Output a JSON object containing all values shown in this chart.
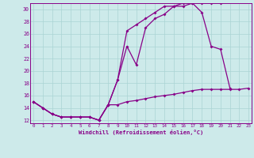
{
  "xlabel": "Windchill (Refroidissement éolien,°C)",
  "bg_color": "#cdeaea",
  "line_color": "#880088",
  "grid_color": "#aad4d4",
  "xlim": [
    -0.3,
    23.3
  ],
  "ylim": [
    11.5,
    31.0
  ],
  "xticks": [
    0,
    1,
    2,
    3,
    4,
    5,
    6,
    7,
    8,
    9,
    10,
    11,
    12,
    13,
    14,
    15,
    16,
    17,
    18,
    19,
    20,
    21,
    22,
    23
  ],
  "yticks": [
    12,
    14,
    16,
    18,
    20,
    22,
    24,
    26,
    28,
    30
  ],
  "series": [
    {
      "x": [
        0,
        1,
        2,
        3,
        4,
        5,
        6,
        7,
        8,
        9,
        10,
        11,
        12,
        13,
        14,
        15,
        16,
        17,
        18,
        19,
        20,
        21,
        22,
        23
      ],
      "y": [
        15.0,
        14.0,
        13.0,
        12.5,
        12.5,
        12.5,
        12.5,
        12.0,
        14.5,
        14.5,
        15.0,
        15.2,
        15.5,
        15.8,
        16.0,
        16.2,
        16.5,
        16.8,
        17.0,
        17.0,
        17.0,
        17.0,
        17.0,
        17.2
      ]
    },
    {
      "x": [
        0,
        1,
        2,
        3,
        4,
        5,
        6,
        7,
        8,
        9,
        10,
        11,
        12,
        13,
        14,
        15,
        16,
        17,
        18,
        19,
        20,
        21
      ],
      "y": [
        15.0,
        14.0,
        13.0,
        12.5,
        12.5,
        12.5,
        12.5,
        12.0,
        14.5,
        18.5,
        24.0,
        21.0,
        27.0,
        28.5,
        29.2,
        30.5,
        30.5,
        31.0,
        29.5,
        24.0,
        23.5,
        17.2
      ]
    },
    {
      "x": [
        0,
        1,
        2,
        3,
        4,
        5,
        6,
        7,
        8,
        9,
        10,
        11,
        12,
        13,
        14,
        15,
        16,
        17,
        18,
        19,
        20
      ],
      "y": [
        15.0,
        14.0,
        13.0,
        12.5,
        12.5,
        12.5,
        12.5,
        12.0,
        14.5,
        18.5,
        26.5,
        27.5,
        28.5,
        29.5,
        30.5,
        30.5,
        31.0,
        31.0,
        31.0,
        31.0,
        31.0
      ]
    }
  ]
}
